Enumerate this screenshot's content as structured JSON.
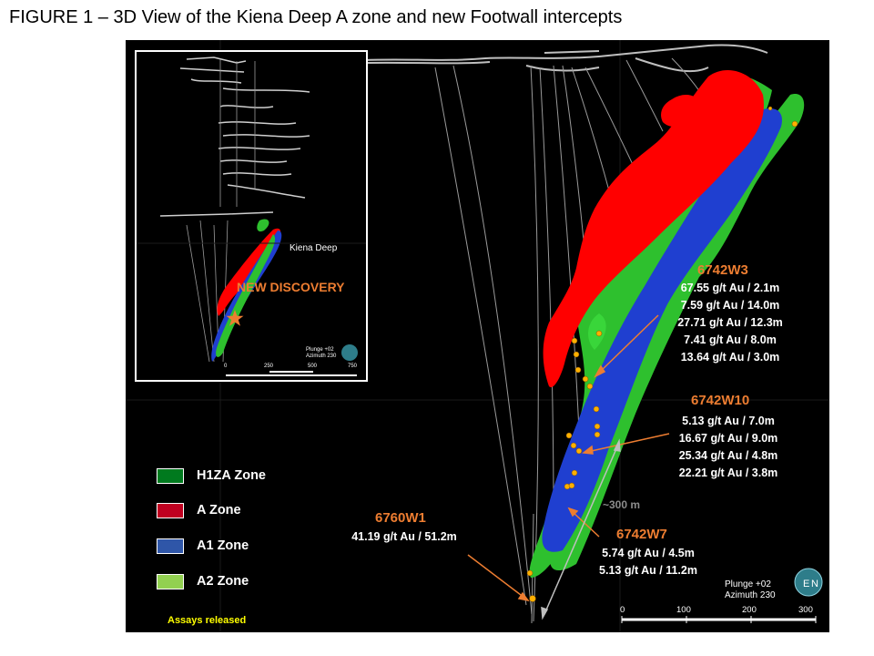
{
  "figure_title": "FIGURE 1 – 3D View of the Kiena Deep A zone and new Footwall intercepts",
  "holes": [
    {
      "id": "6742W3",
      "assays": [
        "67.55 g/t Au / 2.1m",
        "7.59 g/t Au / 14.0m",
        "27.71 g/t Au / 12.3m",
        "7.41 g/t Au / 8.0m",
        "13.64 g/t Au / 3.0m"
      ]
    },
    {
      "id": "6742W10",
      "assays": [
        "5.13 g/t Au / 7.0m",
        "16.67 g/t Au / 9.0m",
        "25.34 g/t Au / 4.8m",
        "22.21 g/t Au / 3.8m"
      ]
    },
    {
      "id": "6760W1",
      "assays": [
        "41.19 g/t Au / 51.2m"
      ]
    },
    {
      "id": "6742W7",
      "assays": [
        "5.74 g/t Au / 4.5m",
        "5.13 g/t Au / 11.2m"
      ]
    }
  ],
  "legend": [
    {
      "label": "H1ZA Zone",
      "color": "#007a1e"
    },
    {
      "label": "A Zone",
      "color": "#c00020"
    },
    {
      "label": "A1 Zone",
      "color": "#2f56a8"
    },
    {
      "label": "A2 Zone",
      "color": "#92d050"
    }
  ],
  "assays_released": "Assays released",
  "hole_spacing": "~300 m",
  "view": {
    "plunge": "Plunge +02",
    "azimuth": "Azimuth 230"
  },
  "scale_ticks": [
    "0",
    "100",
    "200",
    "300"
  ],
  "inset": {
    "label": "Kiena Deep",
    "discovery": "NEW DISCOVERY",
    "plunge": "Plunge +02",
    "azimuth": "Azimuth 230",
    "scale_ticks": [
      "0",
      "250",
      "500",
      "750"
    ]
  },
  "colors": {
    "hole_label": "#ed7d31",
    "zone_red": "#ff0000",
    "zone_blue": "#1f3fd0",
    "zone_green": "#2ec02e",
    "intercept": "#ffb000",
    "assays_note": "#ffff00"
  },
  "icons": [
    "discovery-star-icon",
    "compass-globe-icon"
  ]
}
